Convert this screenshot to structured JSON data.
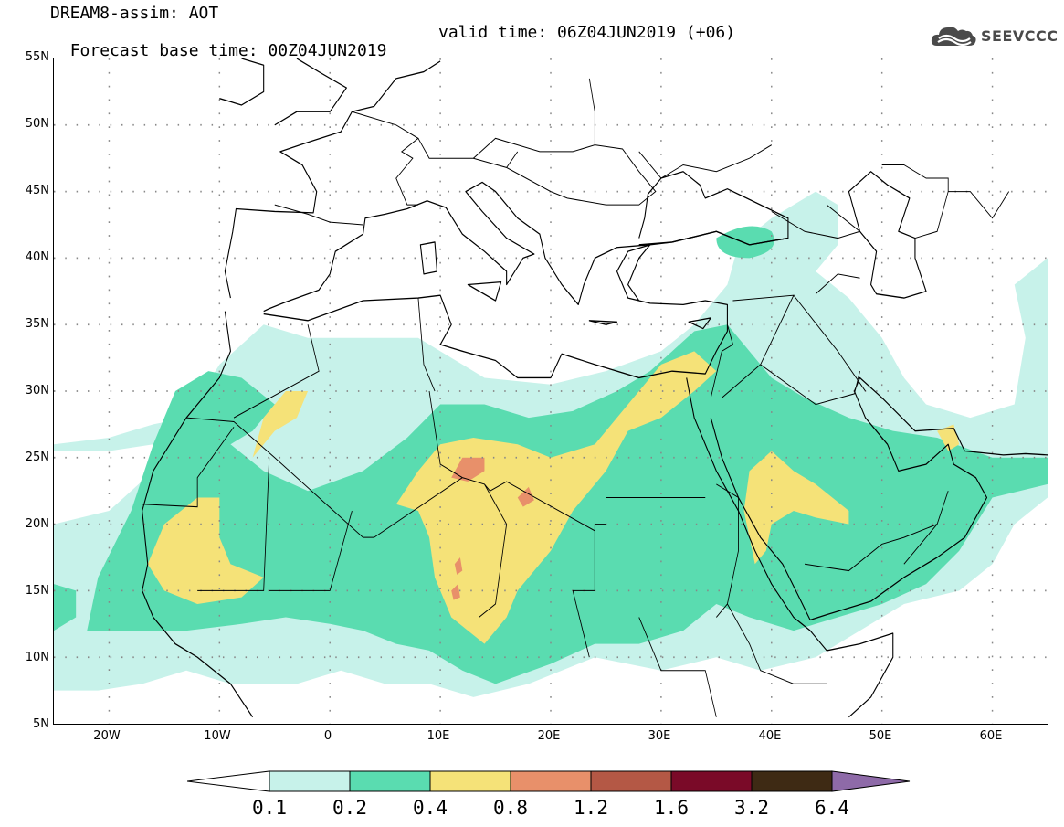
{
  "header": {
    "title": "DREAM8-assim: AOT",
    "base_time": "Forecast base time: 00Z04JUN2019",
    "valid_time": "valid time: 06Z04JUN2019 (+06)"
  },
  "logo": {
    "icon": "cloud-icon",
    "text": "SEEVCCC",
    "color": "#4a4a4a"
  },
  "map": {
    "projection": "lat-lon",
    "lon_range": [
      -25,
      65
    ],
    "lat_range": [
      5,
      55
    ],
    "lat_labels": [
      "55N",
      "50N",
      "45N",
      "40N",
      "35N",
      "30N",
      "25N",
      "20N",
      "15N",
      "10N",
      "5N"
    ],
    "lon_labels": [
      "20W",
      "10W",
      "0",
      "10E",
      "20E",
      "30E",
      "40E",
      "50E",
      "60E"
    ],
    "gridlines": "dotted",
    "field": "aerosol optical thickness (AOT)"
  },
  "colorbar": {
    "labels": [
      "0.1",
      "0.2",
      "0.4",
      "0.8",
      "1.2",
      "1.6",
      "3.2",
      "6.4"
    ],
    "colors": [
      "#c7f2ea",
      "#5adcb0",
      "#f5e278",
      "#e8906a",
      "#b45845",
      "#7a0a28",
      "#3e2a14",
      "#8e6aa8"
    ],
    "low_extend_color": "#ffffff"
  }
}
